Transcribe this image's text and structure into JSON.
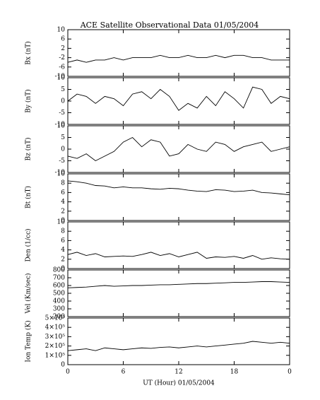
{
  "title": "ACE Satellite Observational Data   01/05/2004",
  "xlabel": "UT (Hour)   01/05/2004",
  "xlim": [
    0,
    24
  ],
  "xticks": [
    0,
    6,
    12,
    18,
    {
      "value": 24,
      "label": "0"
    }
  ],
  "chart_data": [
    {
      "type": "line",
      "ylabel": "Bx (nT)",
      "color": "#000000",
      "ylim": [
        -10,
        10
      ],
      "yticks": [
        -10,
        -6,
        -2,
        2,
        6,
        10
      ],
      "x": [
        0,
        1,
        2,
        3,
        4,
        5,
        6,
        7,
        8,
        9,
        10,
        11,
        12,
        13,
        14,
        15,
        16,
        17,
        18,
        19,
        20,
        21,
        22,
        23,
        24
      ],
      "values": [
        -4,
        -3,
        -4,
        -3,
        -3,
        -2,
        -3,
        -2,
        -2,
        -2,
        -1,
        -2,
        -2,
        -1,
        -2,
        -2,
        -1,
        -2,
        -1,
        -1,
        -2,
        -2,
        -3,
        -3,
        -3
      ]
    },
    {
      "type": "line",
      "ylabel": "By (nT)",
      "color": "#000000",
      "ylim": [
        -10,
        10
      ],
      "yticks": [
        -10,
        -5,
        0,
        5,
        10
      ],
      "x": [
        0,
        1,
        2,
        3,
        4,
        5,
        6,
        7,
        8,
        9,
        10,
        11,
        12,
        13,
        14,
        15,
        16,
        17,
        18,
        19,
        20,
        21,
        22,
        23,
        24
      ],
      "values": [
        0,
        3,
        2,
        -1,
        2,
        1,
        -2,
        3,
        4,
        1,
        5,
        2,
        -4,
        -1,
        -3,
        2,
        -2,
        4,
        1,
        -3,
        6,
        5,
        -1,
        2,
        1
      ]
    },
    {
      "type": "line",
      "ylabel": "Bz (nT)",
      "color": "#000000",
      "ylim": [
        -10,
        10
      ],
      "yticks": [
        -10,
        -5,
        0,
        5,
        10
      ],
      "x": [
        0,
        1,
        2,
        3,
        4,
        5,
        6,
        7,
        8,
        9,
        10,
        11,
        12,
        13,
        14,
        15,
        16,
        17,
        18,
        19,
        20,
        21,
        22,
        23,
        24
      ],
      "values": [
        -3,
        -4,
        -2,
        -5,
        -3,
        -1,
        3,
        5,
        1,
        4,
        3,
        -3,
        -2,
        2,
        0,
        -1,
        3,
        2,
        -1,
        1,
        2,
        3,
        -1,
        0,
        1
      ]
    },
    {
      "type": "line",
      "ylabel": "Bt (nT)",
      "color": "#000000",
      "ylim": [
        0,
        10
      ],
      "yticks": [
        0,
        2,
        4,
        6,
        8,
        10
      ],
      "x": [
        0,
        1,
        2,
        3,
        4,
        5,
        6,
        7,
        8,
        9,
        10,
        11,
        12,
        13,
        14,
        15,
        16,
        17,
        18,
        19,
        20,
        21,
        22,
        23,
        24
      ],
      "values": [
        8.5,
        8.3,
        8,
        7.5,
        7.4,
        7,
        7.2,
        7,
        7,
        6.8,
        6.7,
        6.9,
        6.8,
        6.5,
        6.3,
        6.2,
        6.6,
        6.5,
        6.2,
        6.3,
        6.5,
        6,
        5.9,
        5.7,
        5.5
      ]
    },
    {
      "type": "line",
      "ylabel": "Den (1/cc)",
      "color": "#000000",
      "ylim": [
        0,
        10
      ],
      "yticks": [
        0,
        2,
        4,
        6,
        8,
        10
      ],
      "x": [
        0,
        1,
        2,
        3,
        4,
        5,
        6,
        7,
        8,
        9,
        10,
        11,
        12,
        13,
        14,
        15,
        16,
        17,
        18,
        19,
        20,
        21,
        22,
        23,
        24
      ],
      "values": [
        3,
        3.5,
        2.8,
        3.2,
        2.5,
        2.6,
        2.7,
        2.6,
        3,
        3.5,
        2.8,
        3.2,
        2.5,
        3,
        3.5,
        2.2,
        2.5,
        2.4,
        2.6,
        2.2,
        2.8,
        2,
        2.3,
        2.1,
        2
      ]
    },
    {
      "type": "line",
      "ylabel": "Vel (Km/sec)",
      "color": "#000000",
      "ylim": [
        200,
        800
      ],
      "yticks": [
        200,
        300,
        400,
        500,
        600,
        700,
        800
      ],
      "x": [
        0,
        1,
        2,
        3,
        4,
        5,
        6,
        7,
        8,
        9,
        10,
        11,
        12,
        13,
        14,
        15,
        16,
        17,
        18,
        19,
        20,
        21,
        22,
        23,
        24
      ],
      "values": [
        570,
        575,
        580,
        590,
        600,
        590,
        595,
        600,
        600,
        605,
        610,
        610,
        615,
        620,
        625,
        625,
        630,
        635,
        640,
        640,
        645,
        650,
        650,
        645,
        640
      ]
    },
    {
      "type": "line",
      "ylabel": "Ion Temp (K)",
      "color": "#000000",
      "ylim": [
        0,
        500000
      ],
      "yticks": [
        0,
        {
          "value": 100000,
          "label": "1×10⁵"
        },
        {
          "value": 200000,
          "label": "2×10⁵"
        },
        {
          "value": 300000,
          "label": "3×10⁵"
        },
        {
          "value": 400000,
          "label": "4×10⁵"
        },
        {
          "value": 500000,
          "label": "5×10⁵"
        }
      ],
      "x": [
        0,
        1,
        2,
        3,
        4,
        5,
        6,
        7,
        8,
        9,
        10,
        11,
        12,
        13,
        14,
        15,
        16,
        17,
        18,
        19,
        20,
        21,
        22,
        23,
        24
      ],
      "values": [
        150000,
        160000,
        170000,
        150000,
        180000,
        170000,
        160000,
        170000,
        180000,
        175000,
        185000,
        190000,
        180000,
        190000,
        200000,
        190000,
        200000,
        210000,
        220000,
        230000,
        250000,
        240000,
        230000,
        240000,
        230000
      ]
    }
  ]
}
